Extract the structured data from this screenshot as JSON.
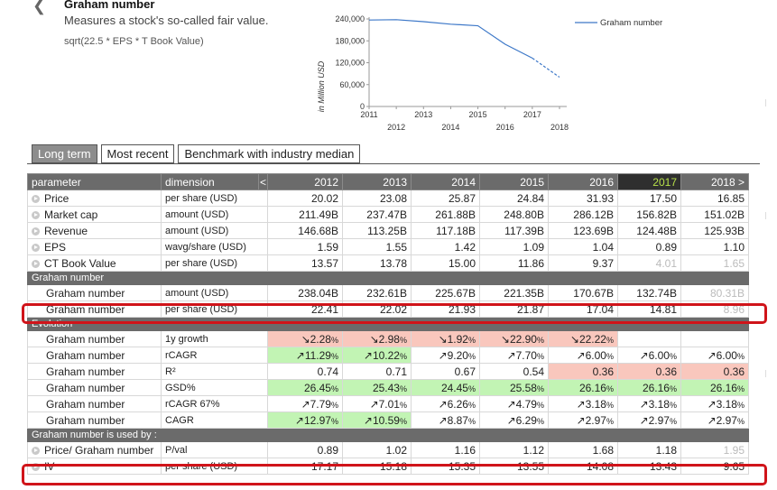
{
  "header": {
    "title": "Graham number",
    "description": "Measures a stock's so-called fair value.",
    "formula": "sqrt(22.5 * EPS * T Book Value)"
  },
  "chart_data": {
    "type": "line",
    "title": "",
    "ylabel": "in Million USD",
    "xlabel": "",
    "x": [
      2011,
      2012,
      2013,
      2014,
      2015,
      2016,
      2017,
      2018
    ],
    "series": [
      {
        "name": "Graham number",
        "values": [
          237000,
          238040,
          232610,
          225670,
          221350,
          170670,
          132740,
          80310
        ],
        "projected_from_index": 6
      }
    ],
    "x_tick_labels_top": [
      "2011",
      "2013",
      "2015",
      "2017"
    ],
    "x_tick_labels_bottom": [
      "2012",
      "2014",
      "2016",
      "2018"
    ],
    "y_ticks": [
      "0",
      "60,000",
      "120,000",
      "180,000",
      "240,000"
    ],
    "ylim": [
      0,
      240000
    ],
    "legend": "Graham number",
    "colors": {
      "line": "#3d78c8",
      "axis": "#999999"
    }
  },
  "tabs": [
    "Long term",
    "Most recent",
    "Benchmark with industry median"
  ],
  "table": {
    "headers": {
      "parameter": "parameter",
      "dimension": "dimension",
      "nav_left": "<",
      "nav_right": ">",
      "years": [
        "2012",
        "2013",
        "2014",
        "2015",
        "2016",
        "2017",
        "2018"
      ]
    },
    "main_rows": [
      {
        "name": "Price",
        "dim": "per share (USD)",
        "values": [
          "20.02",
          "23.08",
          "25.87",
          "24.84",
          "31.93",
          "17.50",
          "16.85"
        ]
      },
      {
        "name": "Market cap",
        "dim": "amount (USD)",
        "values": [
          "211.49B",
          "237.47B",
          "261.88B",
          "248.80B",
          "286.12B",
          "156.82B",
          "151.02B"
        ]
      },
      {
        "name": "Revenue",
        "dim": "amount (USD)",
        "values": [
          "146.68B",
          "113.25B",
          "117.18B",
          "117.39B",
          "123.69B",
          "124.48B",
          "125.93B"
        ]
      },
      {
        "name": "EPS",
        "dim": "wavg/share (USD)",
        "values": [
          "1.59",
          "1.55",
          "1.42",
          "1.09",
          "1.04",
          "0.89",
          "1.10"
        ]
      },
      {
        "name": "CT Book Value",
        "dim": "per share (USD)",
        "values": [
          "13.57",
          "13.78",
          "15.00",
          "11.86",
          "9.37",
          "4.01",
          "1.65"
        ]
      }
    ],
    "section_graham": "Graham number",
    "graham_rows": [
      {
        "name": "Graham number",
        "dim": "amount (USD)",
        "values": [
          "238.04B",
          "232.61B",
          "225.67B",
          "221.35B",
          "170.67B",
          "132.74B",
          "80.31B"
        ]
      },
      {
        "name": "Graham number",
        "dim": "per share (USD)",
        "values": [
          "22.41",
          "22.02",
          "21.93",
          "21.87",
          "17.04",
          "14.81",
          "8.96"
        ]
      }
    ],
    "section_evolution": "Evolution",
    "evolution_rows": [
      {
        "name": "Graham number",
        "dim": "1y growth",
        "values": [
          "↘2.28",
          "↘2.98",
          "↘1.92",
          "↘22.90",
          "↘22.22",
          "",
          ""
        ]
      },
      {
        "name": "Graham number",
        "dim": "rCAGR",
        "values": [
          "↗11.29",
          "↗10.22",
          "↗9.20",
          "↗7.70",
          "↗6.00",
          "↗6.00",
          "↗6.00"
        ]
      },
      {
        "name": "Graham number",
        "dim": "R²",
        "values": [
          "0.74",
          "0.71",
          "0.67",
          "0.54",
          "0.36",
          "0.36",
          "0.36"
        ]
      },
      {
        "name": "Graham number",
        "dim": "GSD%",
        "values": [
          "26.45",
          "25.43",
          "24.45",
          "25.58",
          "26.16",
          "26.16",
          "26.16"
        ]
      },
      {
        "name": "Graham number",
        "dim": "rCAGR 67%",
        "values": [
          "↗7.79",
          "↗7.01",
          "↗6.26",
          "↗4.79",
          "↗3.18",
          "↗3.18",
          "↗3.18"
        ]
      },
      {
        "name": "Graham number",
        "dim": "CAGR",
        "values": [
          "↗12.97",
          "↗10.59",
          "↗8.87",
          "↗6.29",
          "↗2.97",
          "↗2.97",
          "↗2.97"
        ]
      }
    ],
    "percent_sign": "%",
    "section_used_by": "Graham number is used by :",
    "used_rows": [
      {
        "name": "Price/ Graham number",
        "dim": "P/val",
        "values": [
          "0.89",
          "1.02",
          "1.16",
          "1.12",
          "1.68",
          "1.18",
          "1.95"
        ]
      },
      {
        "name": "IV",
        "dim": "per share (USD)",
        "values": [
          "17.17",
          "15.18",
          "15.35",
          "13.55",
          "14.08",
          "13.43",
          "9.65"
        ]
      }
    ]
  },
  "colors": {
    "negative_bg": "#f9c7bd",
    "positive_bg": "#c2f4b4",
    "highlight": "#d0141a",
    "current_year": "#b7e04a"
  }
}
